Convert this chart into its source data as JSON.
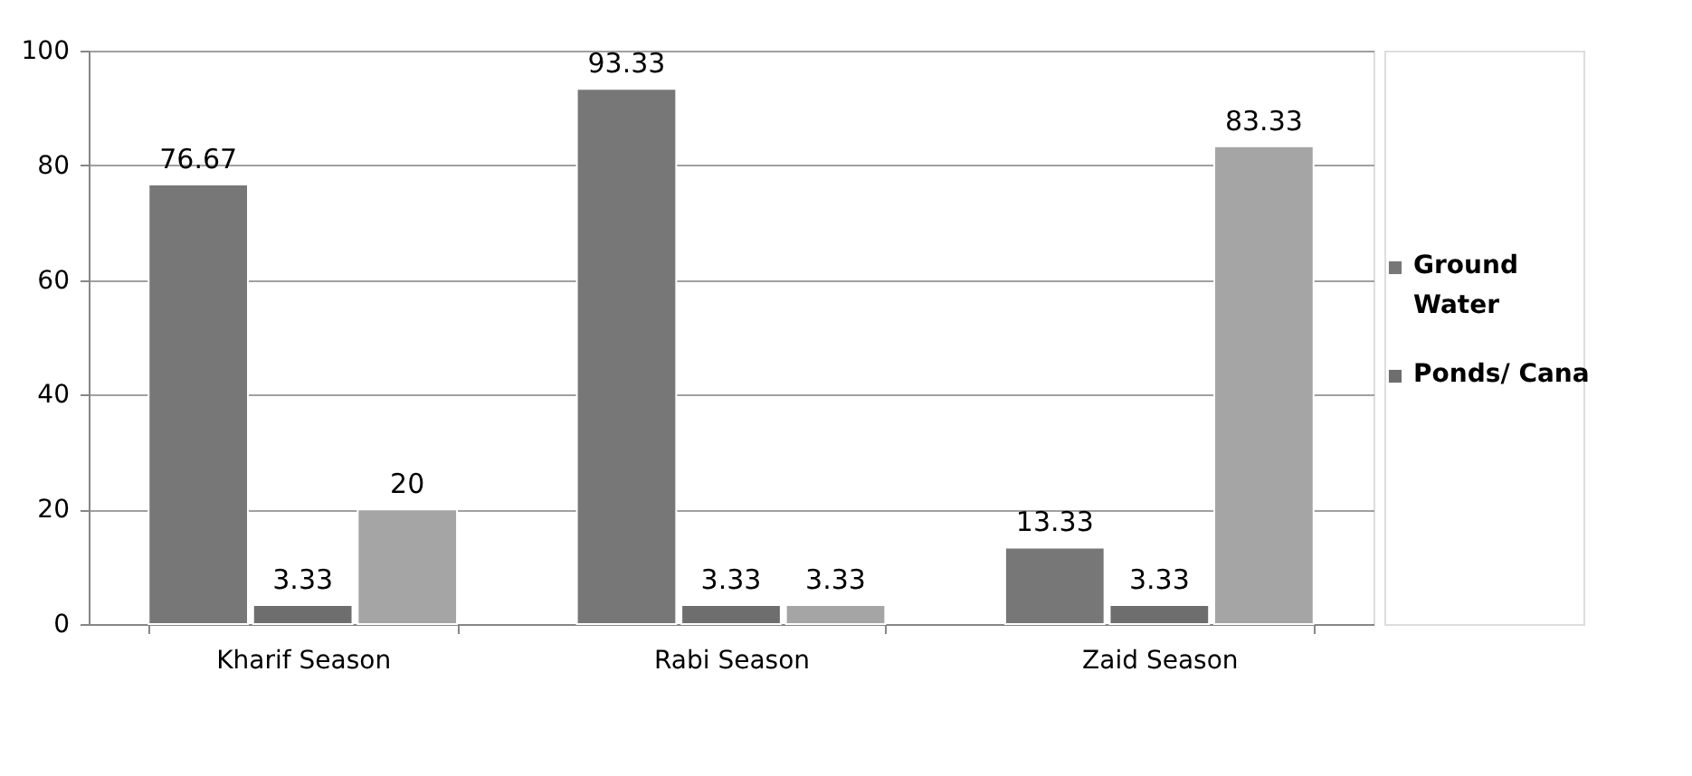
{
  "chart_data": {
    "type": "bar",
    "categories": [
      "Kharif Season",
      "Rabi Season",
      "Zaid Season"
    ],
    "series": [
      {
        "name": "Ground Water",
        "color": "#777777",
        "values": [
          76.67,
          93.33,
          13.33
        ]
      },
      {
        "name": "Ponds/ Cana",
        "color": "#6e6e6e",
        "values": [
          3.33,
          3.33,
          3.33
        ]
      },
      {
        "color": "#a5a5a5",
        "values": [
          20,
          3.33,
          83.33
        ]
      }
    ],
    "ylim": [
      0,
      100
    ],
    "yticks": [
      0,
      20,
      40,
      60,
      80,
      100
    ],
    "grid": "y",
    "legend": "right",
    "data_labels": true
  }
}
